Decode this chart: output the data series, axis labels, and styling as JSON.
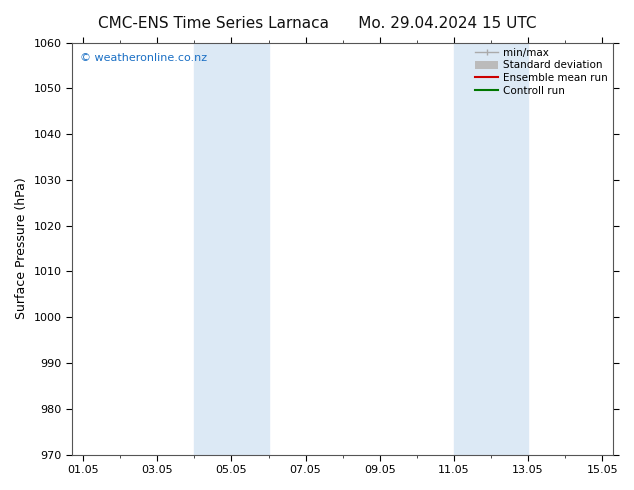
{
  "title_left": "CMC-ENS Time Series Larnaca",
  "title_right": "Mo. 29.04.2024 15 UTC",
  "ylabel": "Surface Pressure (hPa)",
  "ylim": [
    970,
    1060
  ],
  "yticks": [
    970,
    980,
    990,
    1000,
    1010,
    1020,
    1030,
    1040,
    1050,
    1060
  ],
  "xtick_labels": [
    "01.05",
    "03.05",
    "05.05",
    "07.05",
    "09.05",
    "11.05",
    "13.05",
    "15.05"
  ],
  "shade_regions": [
    [
      "2024-05-04",
      "2024-05-06"
    ],
    [
      "2024-05-11",
      "2024-05-13"
    ]
  ],
  "shade_color": "#dce9f5",
  "watermark": "© weatheronline.co.nz",
  "watermark_color": "#1a6fc4",
  "legend_items": [
    {
      "label": "min/max",
      "color": "#aaaaaa",
      "lw": 1.5
    },
    {
      "label": "Standard deviation",
      "color": "#bbbbbb",
      "lw": 6
    },
    {
      "label": "Ensemble mean run",
      "color": "#cc0000",
      "lw": 1.5
    },
    {
      "label": "Controll run",
      "color": "#007700",
      "lw": 1.5
    }
  ],
  "bg_color": "#ffffff",
  "tick_color": "#000000",
  "title_fontsize": 11,
  "label_fontsize": 9,
  "tick_fontsize": 8,
  "watermark_fontsize": 8
}
